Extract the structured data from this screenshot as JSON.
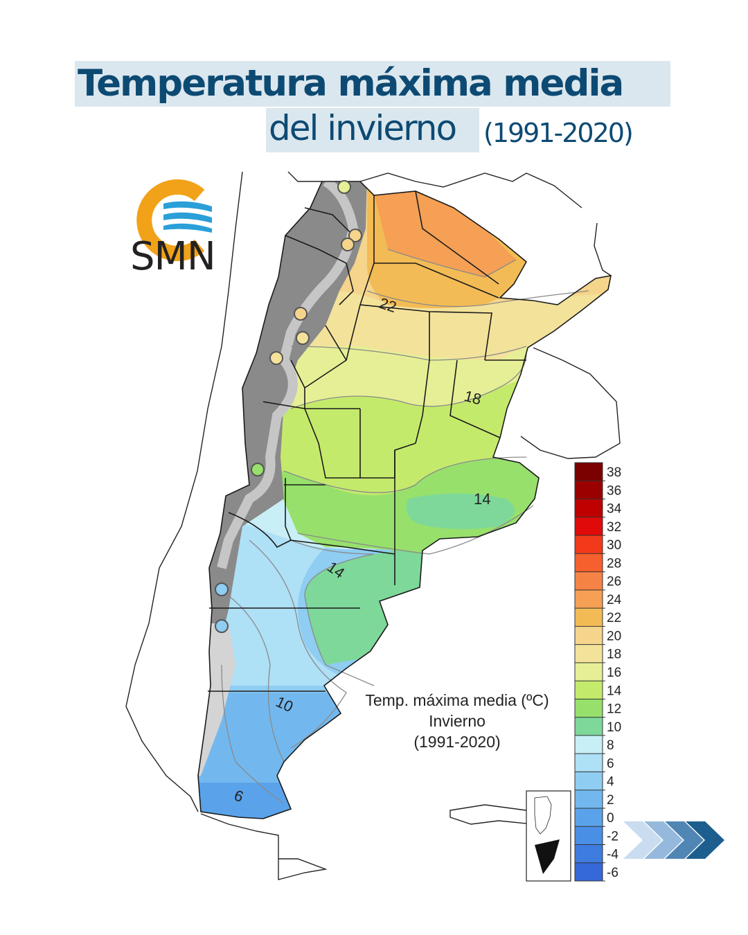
{
  "title": {
    "line1": "Temperatura máxima media",
    "line2": "del invierno",
    "period": "(1991-2020)"
  },
  "logo": {
    "text": "SMN",
    "icon": "smn-logo-icon",
    "colors": {
      "sun": "#f2a218",
      "waves": "#2a9fd8"
    }
  },
  "map": {
    "contour_labels": [
      "22",
      "18",
      "14",
      "14",
      "10",
      "6"
    ]
  },
  "legend": {
    "title_lines": [
      "Temp. máxima media (ºC)",
      "Invierno",
      "(1991-2020)"
    ],
    "tick_labels": [
      "38",
      "36",
      "34",
      "32",
      "30",
      "28",
      "26",
      "24",
      "22",
      "20",
      "18",
      "16",
      "14",
      "12",
      "10",
      "8",
      "6",
      "4",
      "2",
      "0",
      "-2",
      "-4",
      "-6"
    ],
    "colors": [
      "#7b0000",
      "#9b0000",
      "#be0000",
      "#e00a0a",
      "#f23a1a",
      "#f5602e",
      "#f58346",
      "#f5a055",
      "#f3bb55",
      "#f5d48c",
      "#f3e29a",
      "#e6ef96",
      "#c4ea6c",
      "#97e06c",
      "#7dd89a",
      "#c8eef6",
      "#aee0f6",
      "#8fcdf2",
      "#72b8ee",
      "#5aa3ea",
      "#4a8fe6",
      "#3f7ce0",
      "#3568d8"
    ]
  },
  "nav": {
    "next_icon": "chevron-right-icon"
  }
}
